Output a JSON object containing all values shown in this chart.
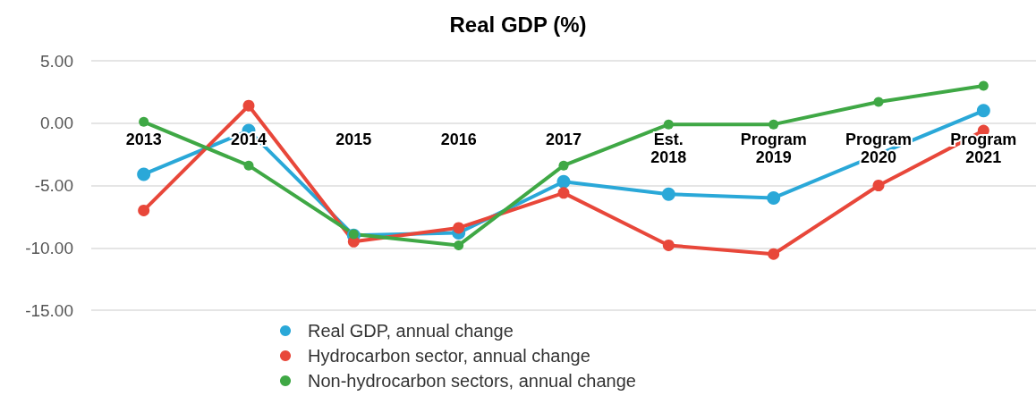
{
  "chart_data": {
    "type": "line",
    "title": "Real GDP (%)",
    "categories": [
      "2013",
      "2014",
      "2015",
      "2016",
      "2017",
      "Est.\n2018",
      "Program\n2019",
      "Program\n2020",
      "Program\n2021"
    ],
    "series": [
      {
        "name": "Real GDP, annual change",
        "color": "#2aa8d8",
        "values": [
          -4.1,
          -0.6,
          -9.0,
          -8.8,
          -4.7,
          -5.7,
          -6.0,
          null,
          1.0
        ]
      },
      {
        "name": "Hydrocarbon sector, annual change",
        "color": "#e8473a",
        "values": [
          -7.0,
          1.4,
          -9.5,
          -8.4,
          -5.6,
          -9.8,
          -10.5,
          -5.0,
          -0.6
        ]
      },
      {
        "name": "Non-hydrocarbon sectors, annual change",
        "color": "#3fa845",
        "values": [
          0.1,
          -3.4,
          -8.9,
          -9.8,
          -3.4,
          -0.1,
          -0.1,
          1.7,
          3.0
        ]
      }
    ],
    "ylim": [
      -15,
      5
    ],
    "yticks": [
      {
        "value": -15,
        "label": "-15.00"
      },
      {
        "value": -10,
        "label": "-10.00"
      },
      {
        "value": -5,
        "label": "-5.00"
      },
      {
        "value": 0,
        "label": "0.00"
      },
      {
        "value": 5,
        "label": "5.00"
      }
    ],
    "grid": "y",
    "legend": "bottom",
    "marker": "circle",
    "line_style": "solid"
  }
}
